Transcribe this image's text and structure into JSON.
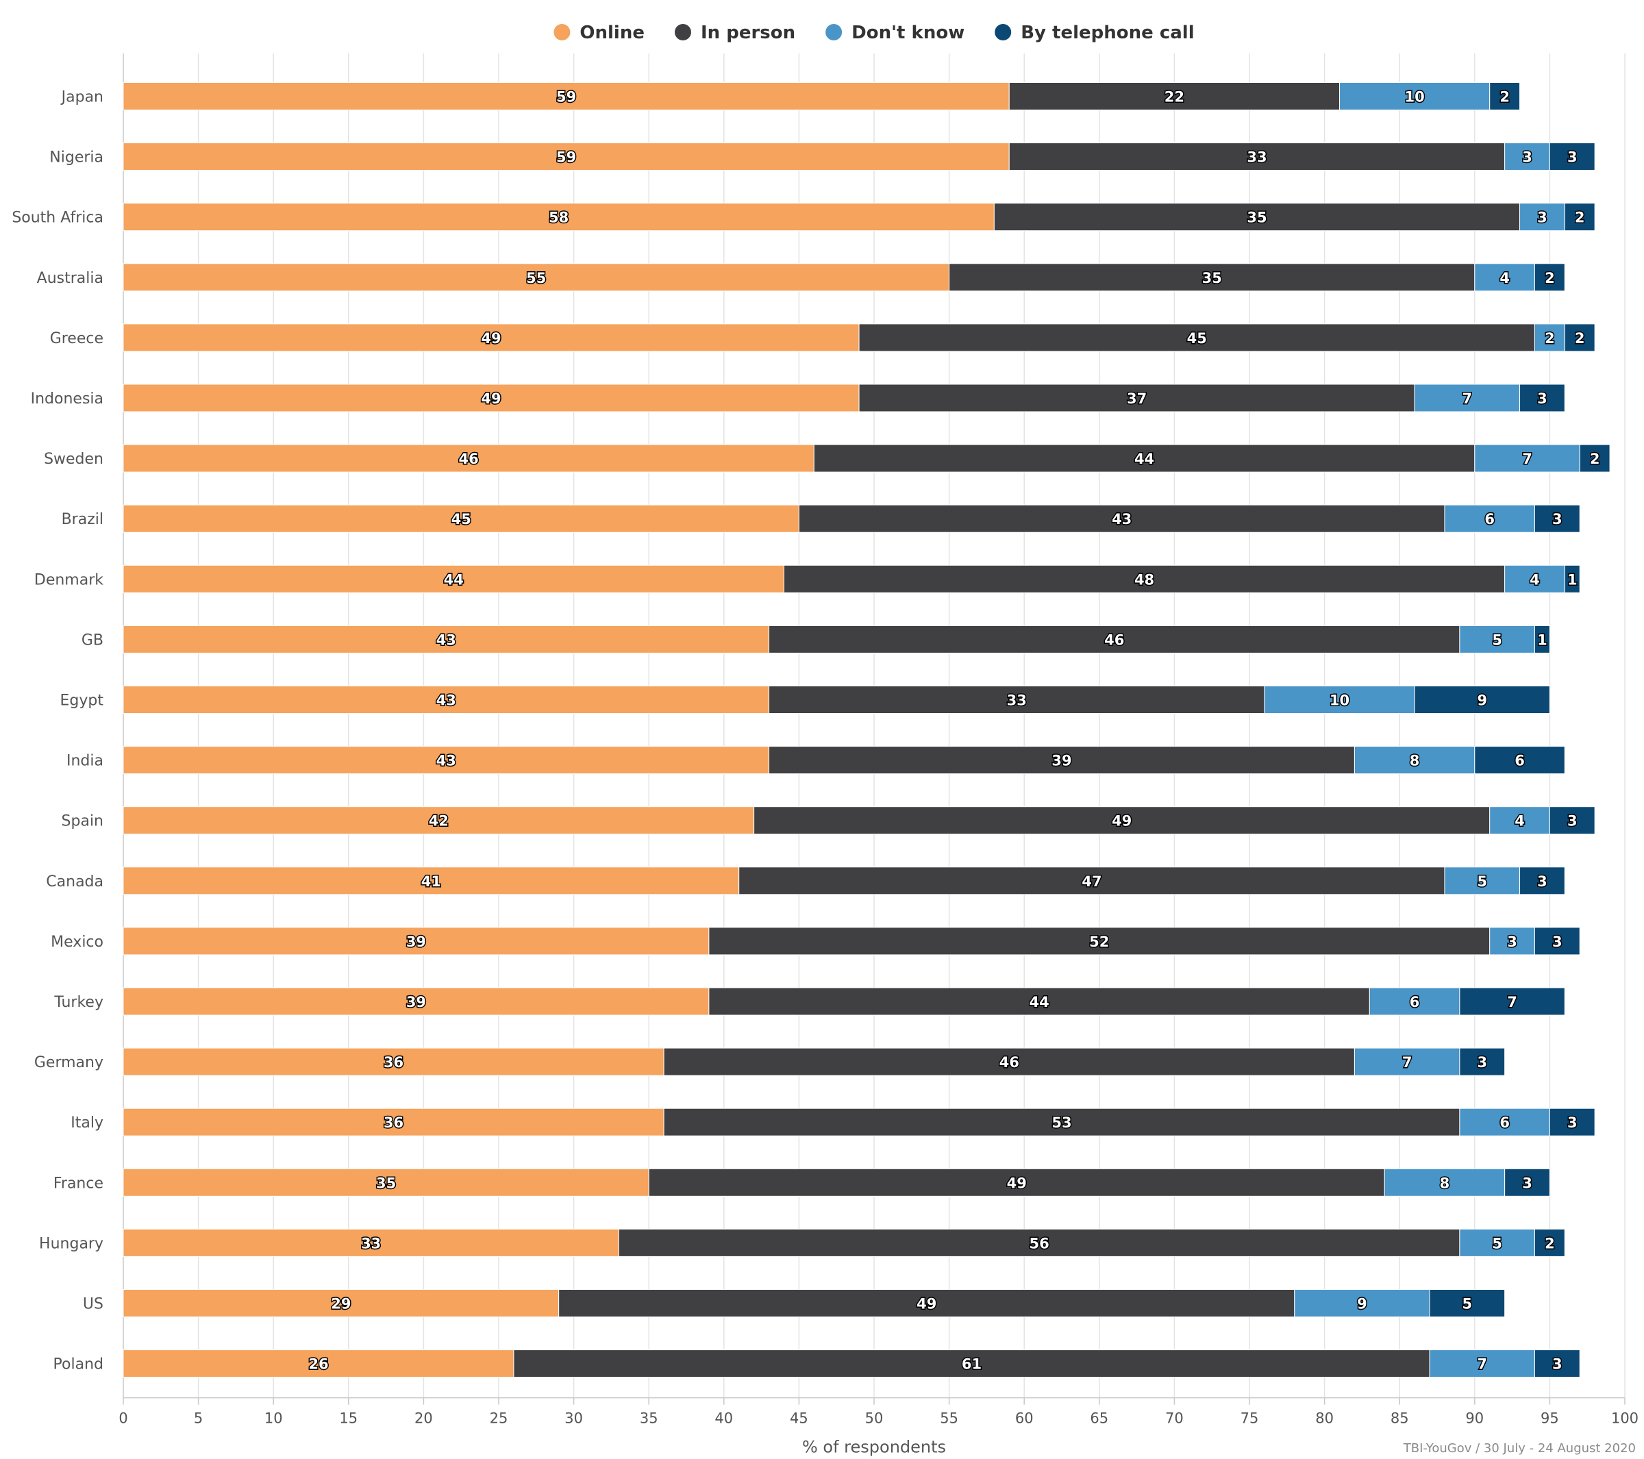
{
  "chart_data": {
    "type": "bar",
    "orientation": "horizontal",
    "stacked": true,
    "xlabel": "% of respondents",
    "ylabel": "",
    "xlim": [
      0,
      100
    ],
    "x_ticks": [
      0,
      5,
      10,
      15,
      20,
      25,
      30,
      35,
      40,
      45,
      50,
      55,
      60,
      65,
      70,
      75,
      80,
      85,
      90,
      95,
      100
    ],
    "grid": true,
    "legend_position": "top-center",
    "source": "TBI-YouGov / 30 July - 24 August 2020",
    "categories": [
      "Japan",
      "Nigeria",
      "South Africa",
      "Australia",
      "Greece",
      "Indonesia",
      "Sweden",
      "Brazil",
      "Denmark",
      "GB",
      "Egypt",
      "India",
      "Spain",
      "Canada",
      "Mexico",
      "Turkey",
      "Germany",
      "Italy",
      "France",
      "Hungary",
      "US",
      "Poland"
    ],
    "series": [
      {
        "name": "Online",
        "color": "#f5a35d",
        "values": [
          59,
          59,
          58,
          55,
          49,
          49,
          46,
          45,
          44,
          43,
          43,
          43,
          42,
          41,
          39,
          39,
          36,
          36,
          35,
          33,
          29,
          26
        ]
      },
      {
        "name": "In person",
        "color": "#404043",
        "values": [
          22,
          33,
          35,
          35,
          45,
          37,
          44,
          43,
          48,
          46,
          33,
          39,
          49,
          47,
          52,
          44,
          46,
          53,
          49,
          56,
          49,
          61
        ]
      },
      {
        "name": "Don't know",
        "color": "#4a95c8",
        "values": [
          10,
          3,
          3,
          4,
          2,
          7,
          7,
          6,
          4,
          5,
          10,
          8,
          4,
          5,
          3,
          6,
          7,
          6,
          8,
          5,
          9,
          7
        ]
      },
      {
        "name": "By telephone call",
        "color": "#0c4874",
        "values": [
          2,
          3,
          2,
          2,
          2,
          3,
          2,
          3,
          1,
          1,
          9,
          6,
          3,
          3,
          3,
          7,
          3,
          3,
          3,
          2,
          5,
          3
        ]
      }
    ]
  }
}
